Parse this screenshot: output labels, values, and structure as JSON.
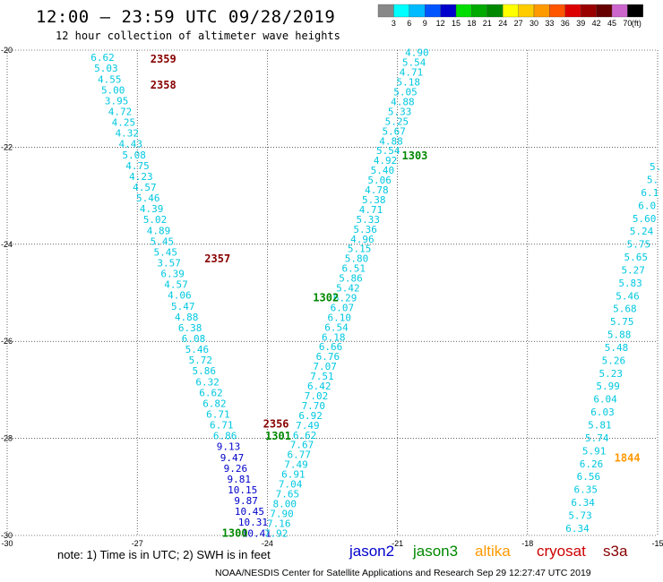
{
  "title": "12:00 — 23:59 UTC 09/28/2019",
  "subtitle": "12 hour collection of altimeter wave heights",
  "note": "note: 1) Time is in UTC; 2) SWH is in feet",
  "footer": "NOAA/NESDIS Center for Satellite Applications and Research   Sep 29 12:27:47 UTC 2019",
  "missions": [
    {
      "name": "jason2",
      "color": "#0000cc"
    },
    {
      "name": "jason3",
      "color": "#008800"
    },
    {
      "name": "altika",
      "color": "#ff9900"
    },
    {
      "name": "cryosat",
      "color": "#cc0000"
    },
    {
      "name": "s3a",
      "color": "#880000"
    }
  ],
  "colorbar": {
    "unit": "(ft)",
    "values": [
      "3",
      "6",
      "9",
      "12",
      "15",
      "18",
      "21",
      "24",
      "27",
      "30",
      "33",
      "36",
      "39",
      "42",
      "45",
      "70"
    ],
    "colors": [
      "#888888",
      "#00ffff",
      "#00bbff",
      "#0055ff",
      "#0000cc",
      "#00dd00",
      "#00aa00",
      "#008800",
      "#ffff00",
      "#ffcc00",
      "#ff9900",
      "#ff5500",
      "#dd0000",
      "#990000",
      "#660000",
      "#cc66cc",
      "#000000"
    ]
  },
  "chart_data": {
    "type": "scatter",
    "xlim": [
      -30,
      -15
    ],
    "ylim": [
      -30,
      -20
    ],
    "x_ticks": [
      "-30",
      "-27",
      "-24",
      "-21",
      "-18",
      "-15"
    ],
    "y_ticks": [
      "-20",
      "-22",
      "-24",
      "-26",
      "-28",
      "-30"
    ],
    "grid": true,
    "time_labels": [
      {
        "text": "2359",
        "x": -26.4,
        "y": -20.18,
        "color": "#880000"
      },
      {
        "text": "2358",
        "x": -26.4,
        "y": -20.72,
        "color": "#880000"
      },
      {
        "text": "2357",
        "x": -25.15,
        "y": -24.3,
        "color": "#880000"
      },
      {
        "text": "2356",
        "x": -23.8,
        "y": -27.7,
        "color": "#880000"
      },
      {
        "text": "1303",
        "x": -20.6,
        "y": -22.18,
        "color": "#008800"
      },
      {
        "text": "1302",
        "x": -22.65,
        "y": -25.1,
        "color": "#008800"
      },
      {
        "text": "1301",
        "x": -23.75,
        "y": -27.95,
        "color": "#008800"
      },
      {
        "text": "1300",
        "x": -24.75,
        "y": -29.95,
        "color": "#008800"
      },
      {
        "text": "1844",
        "x": -15.7,
        "y": -28.4,
        "color": "#ff9900"
      }
    ],
    "tracks": [
      {
        "id": "s3a-2356-2359",
        "x0": -27.8,
        "y0": -20.15,
        "x1": -24.25,
        "y1": -29.95,
        "values": [
          "6.62",
          "5.03",
          "4.55",
          "5.00",
          "3.95",
          "4.72",
          "4.25",
          "4.32",
          "4.43",
          "5.08",
          "4.75",
          "4.23",
          "4.57",
          "5.46",
          "4.39",
          "5.02",
          "4.89",
          "5.45",
          "5.45",
          "3.57",
          "6.39",
          "4.57",
          "4.06",
          "5.47",
          "4.88",
          "6.38",
          "6.08",
          "5.46",
          "5.72",
          "5.86",
          "6.32",
          "6.62",
          "6.82",
          "6.71",
          "6.71",
          "6.86",
          "9.13",
          "9.47",
          "9.26",
          "9.81",
          "10.15",
          "9.87",
          "10.45",
          "10.31",
          "10.41"
        ],
        "colors": [
          "c",
          "c",
          "c",
          "c",
          "c",
          "c",
          "c",
          "c",
          "c",
          "c",
          "c",
          "c",
          "c",
          "c",
          "c",
          "c",
          "c",
          "c",
          "c",
          "c",
          "c",
          "c",
          "c",
          "c",
          "c",
          "c",
          "c",
          "c",
          "c",
          "c",
          "c",
          "c",
          "c",
          "c",
          "c",
          "c",
          "b",
          "b",
          "b",
          "b",
          "b",
          "b",
          "b",
          "b",
          "b"
        ]
      },
      {
        "id": "jason3-1300-1303",
        "x0": -20.55,
        "y0": -20.05,
        "x1": -23.8,
        "y1": -29.95,
        "values": [
          "4.90",
          "5.54",
          "4.71",
          "5.18",
          "5.05",
          "4.88",
          "5.33",
          "5.25",
          "5.67",
          "4.88",
          "5.54",
          "4.92",
          "5.40",
          "5.06",
          "4.78",
          "5.38",
          "4.71",
          "5.33",
          "5.36",
          "4.96",
          "5.15",
          "5.80",
          "6.51",
          "5.86",
          "5.42",
          "6.29",
          "6.07",
          "6.10",
          "6.54",
          "6.18",
          "6.66",
          "6.76",
          "7.07",
          "7.51",
          "6.42",
          "7.02",
          "7.70",
          "6.92",
          "7.49",
          "6.62",
          "7.67",
          "6.77",
          "7.49",
          "6.91",
          "7.04",
          "7.65",
          "8.00",
          "7.90",
          "7.16",
          "7.92"
        ],
        "colors": [
          "c",
          "c",
          "c",
          "c",
          "c",
          "c",
          "c",
          "c",
          "c",
          "c",
          "c",
          "c",
          "c",
          "c",
          "c",
          "c",
          "c",
          "c",
          "c",
          "c",
          "c",
          "c",
          "c",
          "c",
          "c",
          "c",
          "c",
          "c",
          "c",
          "c",
          "c",
          "c",
          "c",
          "c",
          "c",
          "c",
          "c",
          "c",
          "c",
          "c",
          "c",
          "c",
          "c",
          "c",
          "c",
          "c",
          "c",
          "c",
          "c",
          "c"
        ]
      },
      {
        "id": "altika-1844",
        "x0": -15.05,
        "y0": -22.4,
        "x1": -16.85,
        "y1": -29.85,
        "values": [
          "5.",
          "5.",
          "6.1",
          "6.0",
          "5.60",
          "5.24",
          "5.75",
          "5.65",
          "5.27",
          "5.83",
          "5.46",
          "5.68",
          "5.75",
          "5.88",
          "5.48",
          "5.26",
          "5.23",
          "5.99",
          "6.04",
          "6.03",
          "5.81",
          "5.74",
          "5.91",
          "6.26",
          "6.56",
          "6.35",
          "6.34",
          "5.73",
          "6.34"
        ],
        "colors": [
          "c",
          "c",
          "c",
          "c",
          "c",
          "c",
          "c",
          "c",
          "c",
          "c",
          "c",
          "c",
          "c",
          "c",
          "c",
          "c",
          "c",
          "c",
          "c",
          "c",
          "c",
          "c",
          "c",
          "c",
          "c",
          "c",
          "c",
          "c",
          "c"
        ]
      }
    ]
  }
}
